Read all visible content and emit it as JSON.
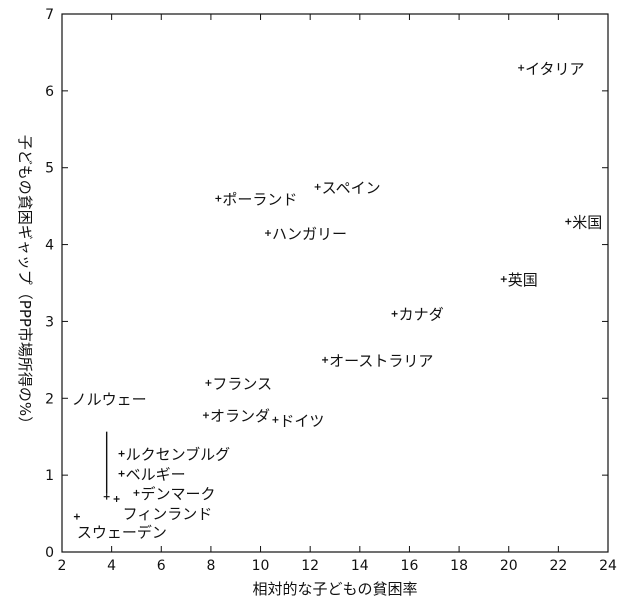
{
  "chart_data": {
    "type": "scatter",
    "xlabel": "相対的な子どもの貧困率",
    "ylabel": "子どもの貧困ギャップ（PPP市場所得の%）",
    "xlim": [
      2,
      24
    ],
    "ylim": [
      0,
      7
    ],
    "xticks": [
      2,
      4,
      6,
      8,
      10,
      12,
      14,
      16,
      18,
      20,
      22,
      24
    ],
    "yticks": [
      0,
      1,
      2,
      3,
      4,
      5,
      6,
      7
    ],
    "grid": false,
    "points": [
      {
        "label": "イタリア",
        "x": 20.5,
        "y": 6.3
      },
      {
        "label": "米国",
        "x": 22.4,
        "y": 4.3
      },
      {
        "label": "英国",
        "x": 19.8,
        "y": 3.55
      },
      {
        "label": "スペイン",
        "x": 12.3,
        "y": 4.75
      },
      {
        "label": "ポーランド",
        "x": 8.3,
        "y": 4.6
      },
      {
        "label": "ハンガリー",
        "x": 10.3,
        "y": 4.15
      },
      {
        "label": "カナダ",
        "x": 15.4,
        "y": 3.1
      },
      {
        "label": "オーストラリア",
        "x": 12.6,
        "y": 2.5
      },
      {
        "label": "フランス",
        "x": 7.9,
        "y": 2.2
      },
      {
        "label": "オランダ",
        "x": 7.8,
        "y": 1.78
      },
      {
        "label": "ドイツ",
        "x": 10.6,
        "y": 1.72
      },
      {
        "label": "ルクセンブルグ",
        "x": 4.4,
        "y": 1.28
      },
      {
        "label": "ベルギー",
        "x": 4.4,
        "y": 1.02
      },
      {
        "label": "デンマーク",
        "x": 5.0,
        "y": 0.77
      },
      {
        "label": "ノルウェー",
        "x": 3.8,
        "y": 0.72
      },
      {
        "label": "フィンランド",
        "x": 4.2,
        "y": 0.69
      },
      {
        "label": "スウェーデン",
        "x": 2.6,
        "y": 0.46
      }
    ]
  }
}
